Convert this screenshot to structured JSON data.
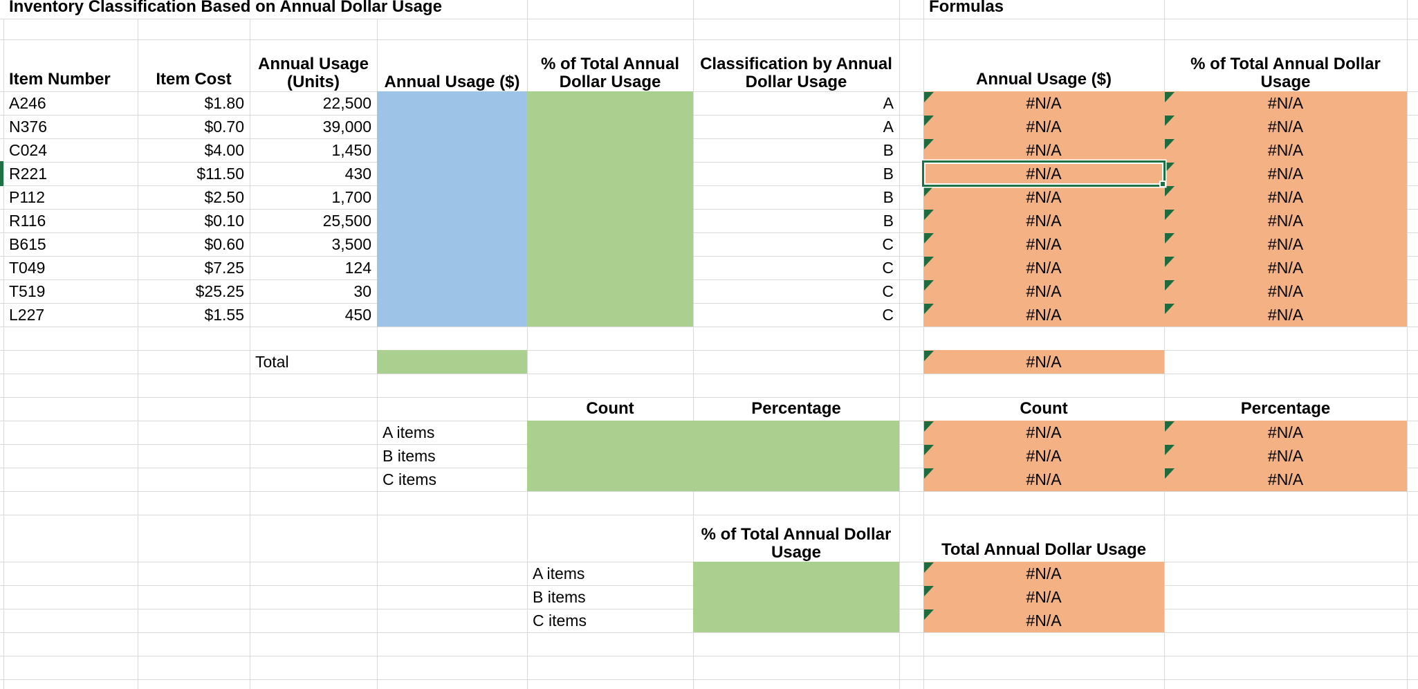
{
  "sheet": {
    "title": "Inventory Classification Based on Annual Dollar Usage",
    "formulas_title": "Formulas",
    "headers": {
      "item_number": "Item Number",
      "item_cost": "Item Cost",
      "units": "Annual Usage (Units)",
      "usd": "Annual Usage ($)",
      "pct": "% of Total Annual Dollar Usage",
      "classification": "Classification by Annual Dollar Usage"
    },
    "formula_headers": {
      "usd": "Annual Usage ($)",
      "pct": "% of Total Annual Dollar Usage"
    },
    "rows": [
      {
        "item_number": "A246",
        "item_cost": "$1.80",
        "units": "22,500",
        "classification": "A",
        "usd": "#N/A",
        "pct": "#N/A"
      },
      {
        "item_number": "N376",
        "item_cost": "$0.70",
        "units": "39,000",
        "classification": "A",
        "usd": "#N/A",
        "pct": "#N/A"
      },
      {
        "item_number": "C024",
        "item_cost": "$4.00",
        "units": "1,450",
        "classification": "B",
        "usd": "#N/A",
        "pct": "#N/A"
      },
      {
        "item_number": "R221",
        "item_cost": "$11.50",
        "units": "430",
        "classification": "B",
        "usd": "#N/A",
        "pct": "#N/A"
      },
      {
        "item_number": "P112",
        "item_cost": "$2.50",
        "units": "1,700",
        "classification": "B",
        "usd": "#N/A",
        "pct": "#N/A"
      },
      {
        "item_number": "R116",
        "item_cost": "$0.10",
        "units": "25,500",
        "classification": "B",
        "usd": "#N/A",
        "pct": "#N/A"
      },
      {
        "item_number": "B615",
        "item_cost": "$0.60",
        "units": "3,500",
        "classification": "C",
        "usd": "#N/A",
        "pct": "#N/A"
      },
      {
        "item_number": "T049",
        "item_cost": "$7.25",
        "units": "124",
        "classification": "C",
        "usd": "#N/A",
        "pct": "#N/A"
      },
      {
        "item_number": "T519",
        "item_cost": "$25.25",
        "units": "30",
        "classification": "C",
        "usd": "#N/A",
        "pct": "#N/A"
      },
      {
        "item_number": "L227",
        "item_cost": "$1.55",
        "units": "450",
        "classification": "C",
        "usd": "#N/A",
        "pct": "#N/A"
      }
    ],
    "total_label": "Total",
    "total_value": "#N/A",
    "count_headers": {
      "count": "Count",
      "percentage": "Percentage"
    },
    "count_rows": [
      {
        "label": "A items",
        "count": "#N/A",
        "percentage": "#N/A"
      },
      {
        "label": "B items",
        "count": "#N/A",
        "percentage": "#N/A"
      },
      {
        "label": "C items",
        "count": "#N/A",
        "percentage": "#N/A"
      }
    ],
    "lower": {
      "left_header": "% of Total Annual Dollar Usage",
      "right_header": "Total Annual Dollar Usage"
    },
    "pct_rows": [
      {
        "label": "A items",
        "value": "#N/A"
      },
      {
        "label": "B items",
        "value": "#N/A"
      },
      {
        "label": "C items",
        "value": "#N/A"
      }
    ],
    "colors": {
      "blue_fill": "#9DC3E6",
      "green_fill": "#A9D08E",
      "orange_fill": "#F4B183",
      "selection": "#1E7145",
      "error_indicator": "#1D6B3E",
      "gridline": "#D9D9D9"
    }
  }
}
